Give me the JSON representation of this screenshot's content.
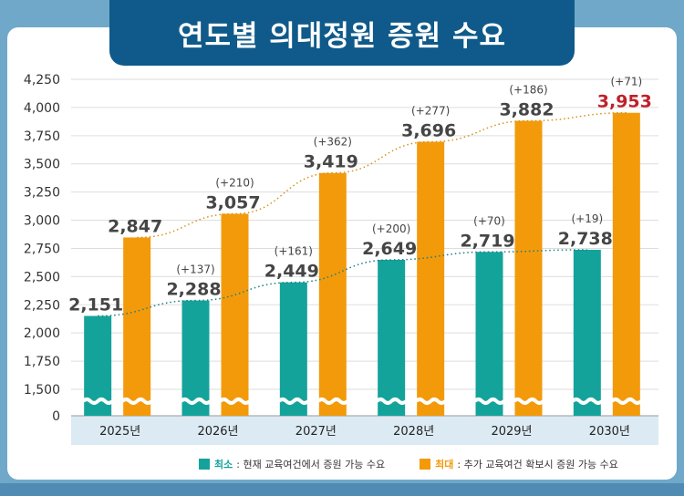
{
  "title": "연도별 의대정원 증원 수요",
  "colors": {
    "min": "#14a39b",
    "max": "#f39a0b",
    "highlight": "#c0202a",
    "label": "#454545",
    "axis_band": "#dceaf3"
  },
  "legend": [
    {
      "key": "최소",
      "text": ": 현재 교육여건에서 증원 가능 수요"
    },
    {
      "key": "최대",
      "text": ": 추가 교육여건 확보시 증원 가능 수요"
    }
  ],
  "chart_data": {
    "type": "bar",
    "title": "연도별 의대정원 증원 수요",
    "categories": [
      "2025년",
      "2026년",
      "2027년",
      "2028년",
      "2029년",
      "2030년"
    ],
    "series": [
      {
        "name": "최소",
        "values": [
          2151,
          2288,
          2449,
          2649,
          2719,
          2738
        ]
      },
      {
        "name": "최대",
        "values": [
          2847,
          3057,
          3419,
          3696,
          3882,
          3953
        ]
      }
    ],
    "value_labels": {
      "최소": [
        "2,151",
        "2,288",
        "2,449",
        "2,649",
        "2,719",
        "2,738"
      ],
      "최대": [
        "2,847",
        "3,057",
        "3,419",
        "3,696",
        "3,882",
        "3,953"
      ]
    },
    "increments": {
      "최소": [
        "",
        "(+137)",
        "(+161)",
        "(+200)",
        "(+70)",
        "(+19)"
      ],
      "최대": [
        "",
        "(+210)",
        "(+362)",
        "(+277)",
        "(+186)",
        "(+71)"
      ]
    },
    "y_ticks": [
      "0",
      "1,500",
      "1,750",
      "2,000",
      "2,250",
      "2,500",
      "2,750",
      "3,000",
      "3,250",
      "3,500",
      "3,750",
      "4,000",
      "4,250"
    ],
    "ylim": [
      0,
      4250
    ],
    "axis_break": "0 ~ 1,500",
    "trend_lines": "dotted, both series",
    "grid": "horizontal",
    "legend_position": "bottom"
  }
}
